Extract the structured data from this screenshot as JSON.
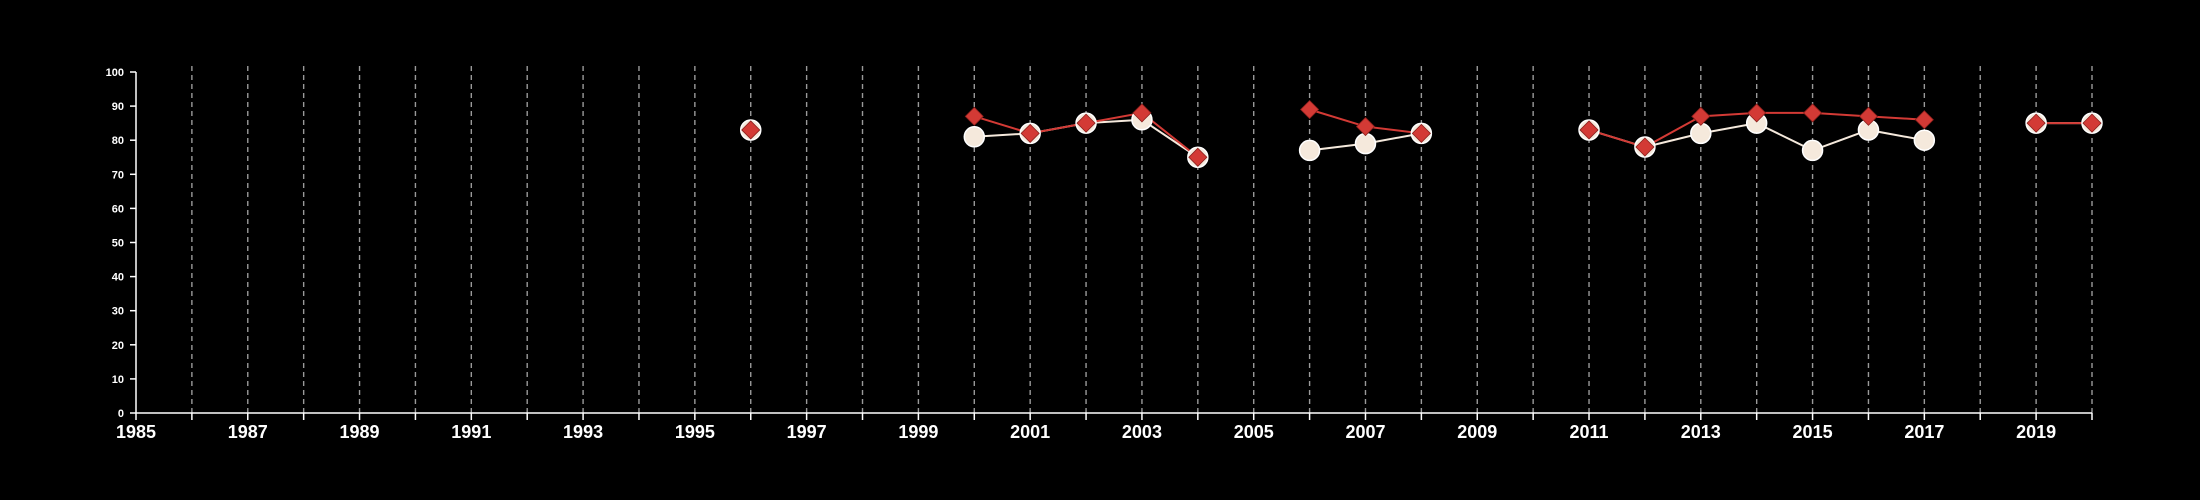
{
  "chart_data": {
    "type": "line",
    "title": "",
    "xlabel": "",
    "ylabel": "",
    "xlim": [
      1985,
      2020
    ],
    "ylim": [
      0,
      100
    ],
    "yticks": [
      0,
      10,
      20,
      30,
      40,
      50,
      60,
      70,
      80,
      90,
      100
    ],
    "xticks_labeled": [
      1985,
      1987,
      1989,
      1991,
      1993,
      1995,
      1997,
      1999,
      2001,
      2003,
      2005,
      2007,
      2009,
      2011,
      2013,
      2015,
      2017,
      2019
    ],
    "vertical_grid": "dashed, every year",
    "series": [
      {
        "marker": "circle",
        "color": "#f5e9dc",
        "points": [
          [
            1996,
            83
          ],
          [
            2000,
            81
          ],
          [
            2001,
            82
          ],
          [
            2002,
            85
          ],
          [
            2003,
            86
          ],
          [
            2004,
            75
          ],
          [
            2006,
            77
          ],
          [
            2007,
            79
          ],
          [
            2008,
            82
          ],
          [
            2011,
            83
          ],
          [
            2012,
            78
          ],
          [
            2013,
            82
          ],
          [
            2014,
            85
          ],
          [
            2015,
            77
          ],
          [
            2016,
            83
          ],
          [
            2017,
            80
          ],
          [
            2019,
            85
          ],
          [
            2020,
            85
          ]
        ]
      },
      {
        "marker": "diamond",
        "color": "#d33a35",
        "points": [
          [
            1996,
            83
          ],
          [
            2000,
            87
          ],
          [
            2001,
            82
          ],
          [
            2002,
            85
          ],
          [
            2003,
            88
          ],
          [
            2004,
            75
          ],
          [
            2006,
            89
          ],
          [
            2007,
            84
          ],
          [
            2008,
            82
          ],
          [
            2011,
            83
          ],
          [
            2012,
            78
          ],
          [
            2013,
            87
          ],
          [
            2014,
            88
          ],
          [
            2015,
            88
          ],
          [
            2016,
            87
          ],
          [
            2017,
            86
          ],
          [
            2019,
            85
          ],
          [
            2020,
            85
          ]
        ]
      }
    ]
  },
  "colors": {
    "background": "#000000",
    "axis": "#ffffff",
    "grid": "#9a9a9a"
  }
}
